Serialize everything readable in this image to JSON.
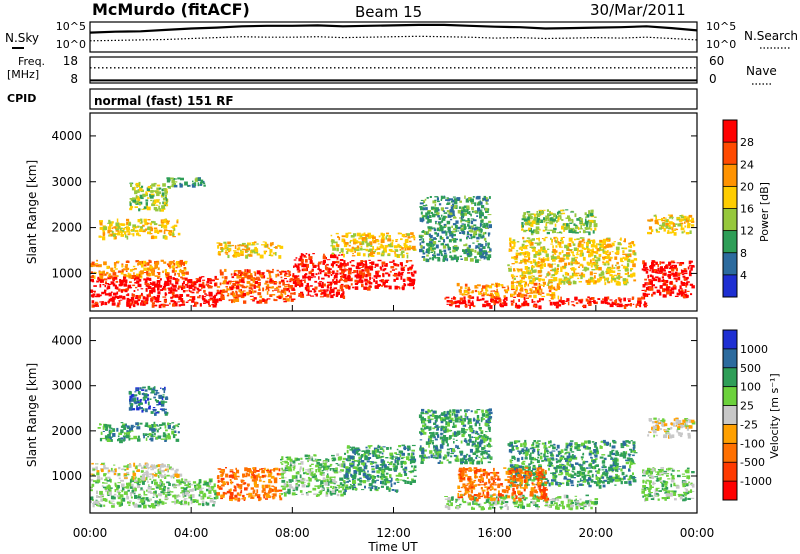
{
  "header": {
    "station": "McMurdo (fitACF)",
    "beam": "Beam 15",
    "date": "30/Mar/2011"
  },
  "noise_panel": {
    "left_label": "N.Sky",
    "left_ticks": [
      "10^5",
      "10^0"
    ],
    "right_ticks": [
      "10^5",
      "10^0"
    ],
    "right_label": "N.Search",
    "sky": [
      3.6,
      3.8,
      3.9,
      4.2,
      4.5,
      4.7,
      5.0,
      5.1,
      5.1,
      5.2,
      5.0,
      5.1,
      5.2,
      5.3,
      5.3,
      5.1,
      4.9,
      4.8,
      4.5,
      4.6,
      4.7,
      4.8,
      5.0,
      4.6,
      4.1
    ],
    "search": [
      1.8,
      1.9,
      2.0,
      2.1,
      2.3,
      2.5,
      2.7,
      2.6,
      2.6,
      2.7,
      2.5,
      2.6,
      2.7,
      2.8,
      2.7,
      2.6,
      2.4,
      2.5,
      2.3,
      2.4,
      2.5,
      2.4,
      2.6,
      2.3,
      2.0
    ]
  },
  "freq_panel": {
    "left_label_1": "Freq.",
    "left_label_2": "[MHz]",
    "left_ticks": [
      "18",
      "8"
    ],
    "right_ticks": [
      "60",
      "0"
    ],
    "right_label": "Nave",
    "freq_mhz": 9.0,
    "nave": 35
  },
  "cpid": {
    "label": "CPID",
    "text": "normal (fast) 151 RF"
  },
  "axes": {
    "x_ticks": [
      "00:00",
      "04:00",
      "08:00",
      "12:00",
      "16:00",
      "20:00",
      "00:00"
    ],
    "x_label": "Time UT",
    "y_label": "Slant Range [km]",
    "y_ticks": [
      "4000",
      "3000",
      "2000",
      "1000"
    ]
  },
  "chart_data": [
    {
      "type": "heatmap",
      "name": "Power",
      "xlabel": "Time UT",
      "ylabel": "Slant Range [km]",
      "xlim": [
        0,
        24
      ],
      "ylim": [
        180,
        4500
      ],
      "colorbar": {
        "label": "Power [dB]",
        "ticks": [
          "28",
          "24",
          "20",
          "16",
          "12",
          "8",
          "4"
        ],
        "colors": [
          "#ff0000",
          "#ff4a00",
          "#ff9300",
          "#ffcd00",
          "#96c83c",
          "#2e9e57",
          "#2c6b9e",
          "#1e2fd2"
        ]
      },
      "regions": [
        {
          "t0": 0.0,
          "t1": 5.0,
          "r0": 300,
          "r1": 950,
          "level": 7
        },
        {
          "t0": 0.0,
          "t1": 3.8,
          "r0": 950,
          "r1": 1300,
          "level": 5
        },
        {
          "t0": 5.0,
          "t1": 8.0,
          "r0": 400,
          "r1": 1100,
          "level": 6
        },
        {
          "t0": 8.0,
          "t1": 10.0,
          "r0": 500,
          "r1": 1450,
          "level": 7
        },
        {
          "t0": 10.0,
          "t1": 12.8,
          "r0": 700,
          "r1": 1300,
          "level": 7
        },
        {
          "t0": 0.3,
          "t1": 3.5,
          "r0": 1800,
          "r1": 2200,
          "level": 4
        },
        {
          "t0": 1.5,
          "t1": 3.0,
          "r0": 2400,
          "r1": 3000,
          "level": 3
        },
        {
          "t0": 5.0,
          "t1": 7.5,
          "r0": 1400,
          "r1": 1700,
          "level": 4
        },
        {
          "t0": 9.5,
          "t1": 12.8,
          "r0": 1400,
          "r1": 1900,
          "level": 4
        },
        {
          "t0": 13.0,
          "t1": 15.8,
          "r0": 1300,
          "r1": 2700,
          "level": 2
        },
        {
          "t0": 14.0,
          "t1": 22.0,
          "r0": 300,
          "r1": 500,
          "level": 7
        },
        {
          "t0": 14.5,
          "t1": 18.5,
          "r0": 500,
          "r1": 800,
          "level": 5
        },
        {
          "t0": 16.5,
          "t1": 21.5,
          "r0": 800,
          "r1": 1800,
          "level": 4
        },
        {
          "t0": 21.8,
          "t1": 23.8,
          "r0": 500,
          "r1": 1300,
          "level": 7
        },
        {
          "t0": 22.0,
          "t1": 23.8,
          "r0": 1900,
          "r1": 2300,
          "level": 4
        },
        {
          "t0": 3.0,
          "t1": 4.5,
          "r0": 2900,
          "r1": 3100,
          "level": 2
        },
        {
          "t0": 17.0,
          "t1": 20.0,
          "r0": 1900,
          "r1": 2400,
          "level": 3
        }
      ]
    },
    {
      "type": "heatmap",
      "name": "Velocity",
      "xlabel": "Time UT",
      "ylabel": "Slant Range [km]",
      "xlim": [
        0,
        24
      ],
      "ylim": [
        180,
        4500
      ],
      "colorbar": {
        "label": "Velocity [m s⁻¹]",
        "ticks": [
          "1000",
          "500",
          "100",
          "25",
          "-25",
          "-100",
          "-500",
          "-1000"
        ],
        "colors": [
          "#1e2fd2",
          "#2c6b9e",
          "#2e9e57",
          "#6cd23c",
          "#c8c8c8",
          "#ffa000",
          "#ff7000",
          "#ff3a00",
          "#ff0000"
        ]
      },
      "regions": [
        {
          "t0": 0.0,
          "t1": 5.0,
          "r0": 350,
          "r1": 950,
          "level": 5
        },
        {
          "t0": 0.0,
          "t1": 3.5,
          "r0": 950,
          "r1": 1300,
          "level": 4
        },
        {
          "t0": 5.0,
          "t1": 7.5,
          "r0": 500,
          "r1": 1200,
          "level": 2
        },
        {
          "t0": 7.5,
          "t1": 10.0,
          "r0": 600,
          "r1": 1500,
          "level": 5
        },
        {
          "t0": 10.0,
          "t1": 12.8,
          "r0": 700,
          "r1": 1700,
          "level": 6
        },
        {
          "t0": 0.3,
          "t1": 3.5,
          "r0": 1800,
          "r1": 2200,
          "level": 6
        },
        {
          "t0": 1.5,
          "t1": 3.0,
          "r0": 2400,
          "r1": 3000,
          "level": 7
        },
        {
          "t0": 13.0,
          "t1": 15.8,
          "r0": 1300,
          "r1": 2500,
          "level": 6
        },
        {
          "t0": 14.0,
          "t1": 20.0,
          "r0": 300,
          "r1": 600,
          "level": 5
        },
        {
          "t0": 16.5,
          "t1": 21.5,
          "r0": 800,
          "r1": 1800,
          "level": 6
        },
        {
          "t0": 21.8,
          "t1": 23.8,
          "r0": 500,
          "r1": 1200,
          "level": 5
        },
        {
          "t0": 22.0,
          "t1": 23.8,
          "r0": 1900,
          "r1": 2300,
          "level": 4
        },
        {
          "t0": 14.5,
          "t1": 18.0,
          "r0": 500,
          "r1": 1200,
          "level": 2
        }
      ]
    }
  ]
}
